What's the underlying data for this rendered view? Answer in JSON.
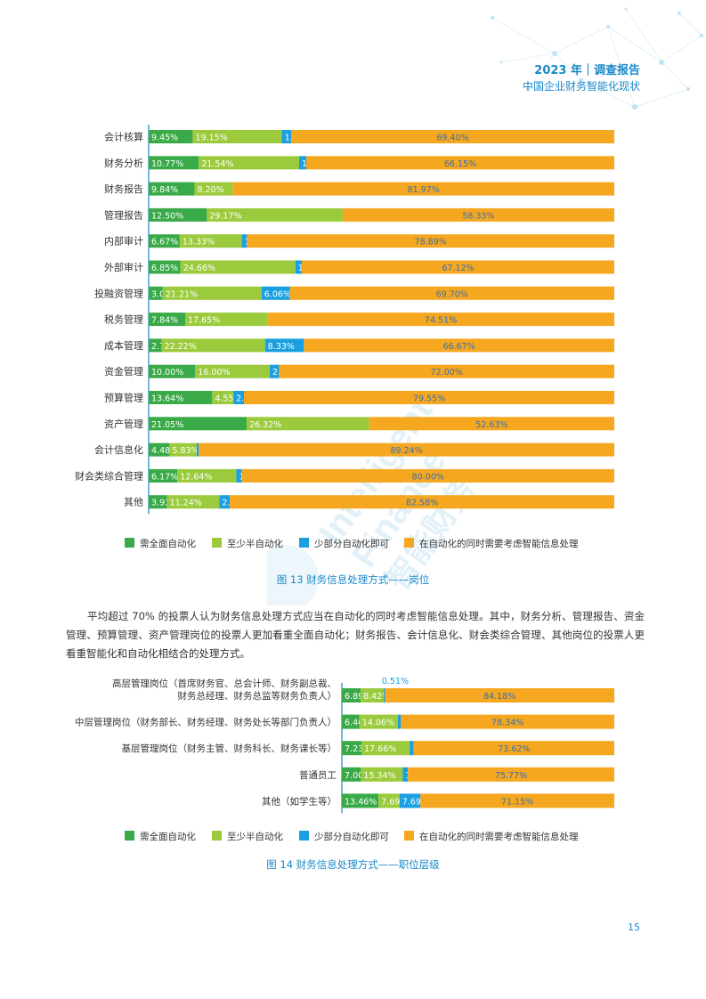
{
  "header": {
    "title": "2023 年｜调查报告",
    "subtitle": "中国企业财务智能化现状"
  },
  "colors": {
    "full": "#3aaa48",
    "half": "#9bcb3c",
    "part": "#1a9fe0",
    "smart": "#f5a71f",
    "accent": "#1a88c9"
  },
  "legend_items": [
    "需全面自动化",
    "至少半自动化",
    "少部分自动化即可",
    "在自动化的同时需要考虑智能信息处理"
  ],
  "watermark": {
    "text1": "Intelligent",
    "text2": "Finance",
    "text3": "智能财务"
  },
  "chart_data": [
    {
      "type": "bar",
      "stacked": true,
      "orientation": "horizontal",
      "caption": "图 13  财务信息处理方式——岗位",
      "xlim": [
        0,
        100
      ],
      "categories": [
        "会计核算",
        "财务分析",
        "财务报告",
        "管理报告",
        "内部审计",
        "外部审计",
        "投融资管理",
        "税务管理",
        "成本管理",
        "资金管理",
        "预算管理",
        "资产管理",
        "会计信息化",
        "财会类综合管理",
        "其他"
      ],
      "series": [
        {
          "name": "需全面自动化",
          "values": [
            9.45,
            10.77,
            9.84,
            12.5,
            6.67,
            6.85,
            3.03,
            7.84,
            2.78,
            10.0,
            13.64,
            21.05,
            4.48,
            6.17,
            3.93
          ]
        },
        {
          "name": "至少半自动化",
          "values": [
            19.15,
            21.54,
            8.2,
            29.17,
            13.33,
            24.66,
            21.21,
            17.65,
            22.22,
            16.0,
            4.55,
            26.32,
            5.83,
            12.64,
            11.24
          ]
        },
        {
          "name": "少部分自动化即可",
          "values": [
            1.99,
            1.54,
            0,
            0,
            1.11,
            1.37,
            6.06,
            0,
            8.33,
            2.0,
            2.27,
            0,
            0.45,
            1.19,
            2.25
          ]
        },
        {
          "name": "在自动化的同时需要考虑智能信息处理",
          "values": [
            69.4,
            66.15,
            81.97,
            58.33,
            78.89,
            67.12,
            69.7,
            74.51,
            66.67,
            72.0,
            79.55,
            52.63,
            89.24,
            80.0,
            82.58
          ]
        }
      ],
      "labels": [
        [
          "9.45%",
          "19.15%",
          "1.99%",
          "69.40%"
        ],
        [
          "10.77%",
          "21.54%",
          "1.54%",
          "66.15%"
        ],
        [
          "9.84%",
          "8.20%",
          "0%",
          "81.97%"
        ],
        [
          "12.50%",
          "29.17%",
          "0%",
          "58.33%"
        ],
        [
          "6.67%",
          "13.33%",
          "1.11%",
          "78.89%"
        ],
        [
          "6.85%",
          "24.66%",
          "1.37%",
          "67.12%"
        ],
        [
          "3.03%",
          "21.21%",
          "6.06%",
          "69.70%"
        ],
        [
          "7.84%",
          "17.65%",
          "0%",
          "74.51%"
        ],
        [
          "2.78%",
          "22.22%",
          "8.33%",
          "66.67%"
        ],
        [
          "10.00%",
          "16.00%",
          "2.00%",
          "72.00%"
        ],
        [
          "13.64%",
          "4.55%",
          "2.27%",
          "79.55%"
        ],
        [
          "21.05%",
          "26.32%",
          "0%",
          "52.63%"
        ],
        [
          "4.48%",
          "5.83%",
          "0.45%",
          "89.24%"
        ],
        [
          "6.17%",
          "12.64%",
          "1.19%",
          "80.00%"
        ],
        [
          "3.93%",
          "11.24%",
          "2.25%",
          "82.58%"
        ]
      ]
    },
    {
      "type": "bar",
      "stacked": true,
      "orientation": "horizontal",
      "caption": "图 14   财务信息处理方式——职位层级",
      "xlim": [
        0,
        100
      ],
      "categories": [
        [
          "高层管理岗位（首席财务官、总会计师、财务副总裁、",
          "财务总经理、财务总监等财务负责人）"
        ],
        [
          "中层管理岗位（财务部长、财务经理、财务处长等部门负责人）"
        ],
        [
          "基层管理岗位（财务主管、财务科长、财务课长等）"
        ],
        [
          "普通员工"
        ],
        [
          "其他（如学生等）"
        ]
      ],
      "series": [
        {
          "name": "需全面自动化",
          "values": [
            6.89,
            6.46,
            7.23,
            7.0,
            13.46
          ]
        },
        {
          "name": "至少半自动化",
          "values": [
            8.42,
            14.06,
            17.66,
            15.34,
            7.69
          ]
        },
        {
          "name": "少部分自动化即可",
          "values": [
            0.51,
            1.15,
            1.49,
            1.88,
            7.69
          ]
        },
        {
          "name": "在自动化的同时需要考虑智能信息处理",
          "values": [
            84.18,
            78.34,
            73.62,
            75.77,
            71.15
          ]
        }
      ],
      "labels": [
        [
          "6.89%",
          "8.42%",
          "0.51%",
          "84.18%"
        ],
        [
          "6.46%",
          "14.06%",
          "1.15%",
          "78.34%"
        ],
        [
          "7.23%",
          "17.66%",
          "1.49%",
          "73.62%"
        ],
        [
          "7.00%",
          "15.34%",
          "1.88%",
          "75.77%"
        ],
        [
          "13.46%",
          "7.69%",
          "7.69%",
          "71.15%"
        ]
      ]
    }
  ],
  "paragraph": "平均超过 70% 的投票人认为财务信息处理方式应当在自动化的同时考虑智能信息处理。其中，财务分析、管理报告、资金管理、预算管理、资产管理岗位的投票人更加看重全面自动化；财务报告、会计信息化、财会类综合管理、其他岗位的投票人更看重智能化和自动化相结合的处理方式。",
  "page_number": "15"
}
